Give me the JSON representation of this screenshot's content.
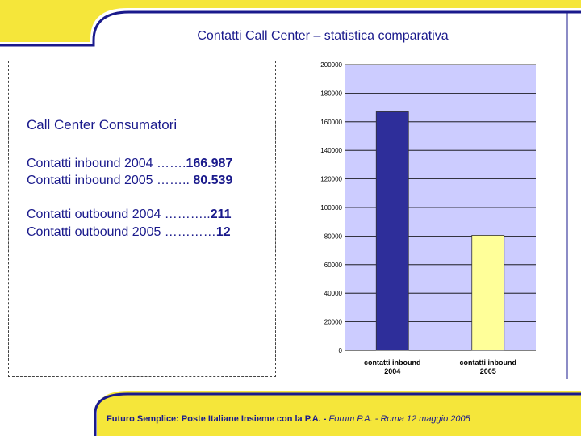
{
  "slide": {
    "title": "Contatti Call Center – statistica comparativa",
    "colors": {
      "accent_yellow": "#f5e63a",
      "frame_blue": "#1a1a8c",
      "text": "#1a1a8c"
    }
  },
  "textbox": {
    "heading": "Call Center Consumatori",
    "lines": [
      {
        "label": "Contatti inbound 2004 …….",
        "value": "166.987"
      },
      {
        "label": "Contatti inbound 2005 …….. ",
        "value": "80.539"
      },
      {
        "label": "Contatti outbound 2004 ………..",
        "value": "211"
      },
      {
        "label": "Contatti outbound 2005 …………",
        "value": "12"
      }
    ]
  },
  "footer": {
    "text": "Futuro Semplice: Poste Italiane Insieme con la P.A. - ",
    "italic": "Forum P.A. - Roma 12 maggio 2005"
  },
  "chart_data": {
    "type": "bar",
    "categories": [
      "contatti inbound 2004",
      "contatti inbound 2005"
    ],
    "category_lines": [
      [
        "contatti inbound",
        "2004"
      ],
      [
        "contatti inbound",
        "2005"
      ]
    ],
    "values": [
      166987,
      80539
    ],
    "bar_colors": [
      "#2e2e9a",
      "#ffff99"
    ],
    "plot_background": "#ccccff",
    "ylim": [
      0,
      200000
    ],
    "yticks": [
      "0",
      "20000",
      "40000",
      "60000",
      "80000",
      "100000",
      "120000",
      "140000",
      "160000",
      "180000",
      "200000"
    ],
    "grid": true,
    "title": "",
    "xlabel": "",
    "ylabel": ""
  }
}
